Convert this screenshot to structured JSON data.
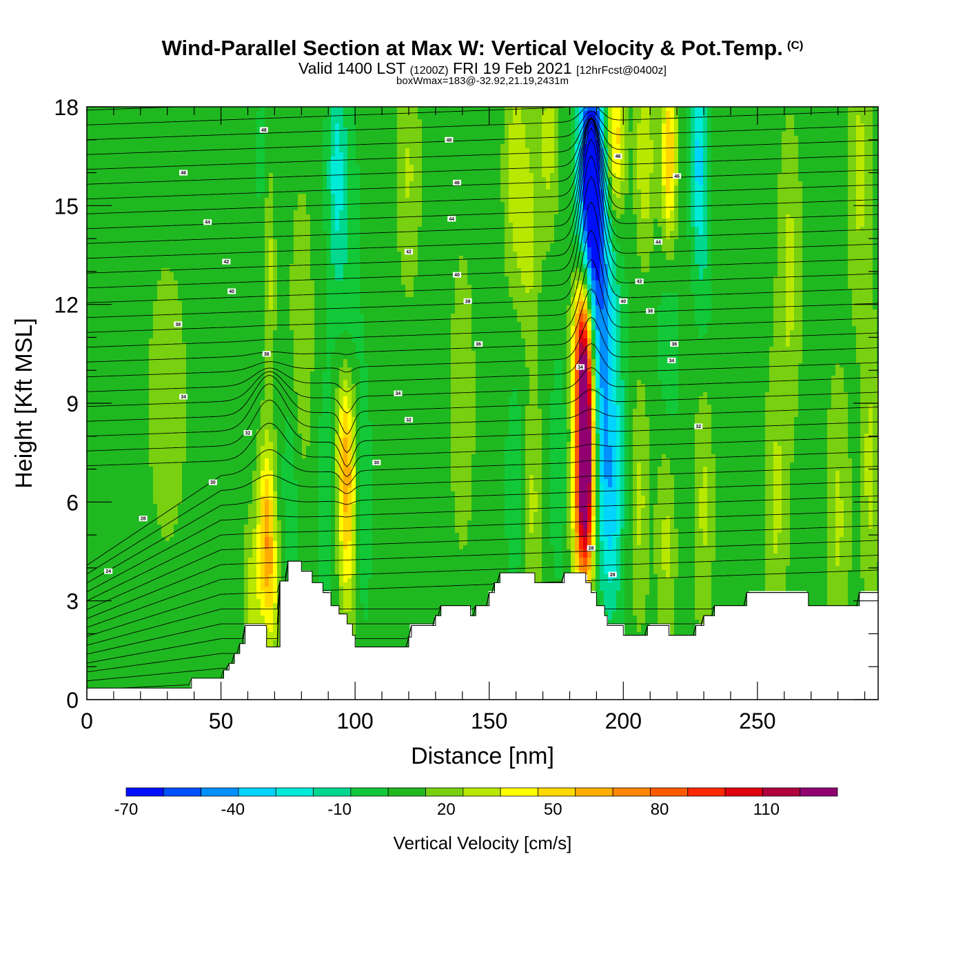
{
  "header": {
    "title": "Wind-Parallel Section at Max W: Vertical Velocity & Pot.Temp.",
    "copyright": "(C)",
    "valid_prefix": "Valid 1400 LST",
    "valid_z": "(1200Z)",
    "valid_date": "FRI 19 Feb 2021",
    "forecast": "[12hrFcst@0400z]",
    "box_info": "boxWmax=183@-32.92,21.19,2431m"
  },
  "chart_data": {
    "type": "heatmap",
    "xlabel": "Distance [nm]",
    "ylabel": "Height [Kft MSL]",
    "xlim": [
      0,
      295
    ],
    "ylim": [
      0,
      18
    ],
    "x_ticks": [
      "0",
      "50",
      "100",
      "150",
      "200",
      "250"
    ],
    "y_ticks": [
      "0",
      "3",
      "6",
      "9",
      "12",
      "15",
      "18"
    ],
    "colorbar": {
      "label": "Vertical Velocity [cm/s]",
      "bins": [
        -70,
        -60,
        -50,
        -40,
        -30,
        -20,
        -10,
        0,
        10,
        20,
        30,
        40,
        50,
        60,
        70,
        80,
        90,
        100,
        110,
        120,
        130
      ],
      "tick_labels": [
        "-70",
        "-40",
        "-10",
        "20",
        "50",
        "80",
        "110"
      ],
      "colors": [
        "#0010ff",
        "#0050ff",
        "#0090ff",
        "#00d4ff",
        "#00ead8",
        "#00d890",
        "#12c838",
        "#20b820",
        "#78d010",
        "#b8e800",
        "#ffff00",
        "#ffd800",
        "#ffae00",
        "#ff8600",
        "#ff5a00",
        "#ff2800",
        "#e00010",
        "#b00040",
        "#900070"
      ]
    },
    "terrain_kft": [
      [
        0,
        0.35
      ],
      [
        38,
        0.35
      ],
      [
        39,
        0.65
      ],
      [
        50,
        0.65
      ],
      [
        51,
        0.9
      ],
      [
        53,
        1.1
      ],
      [
        55,
        1.4
      ],
      [
        57,
        1.7
      ],
      [
        59,
        2.25
      ],
      [
        66,
        2.25
      ],
      [
        67,
        1.6
      ],
      [
        71,
        1.6
      ],
      [
        72,
        3.6
      ],
      [
        75,
        4.2
      ],
      [
        79,
        4.2
      ],
      [
        80,
        3.9
      ],
      [
        84,
        3.55
      ],
      [
        88,
        3.25
      ],
      [
        91,
        2.85
      ],
      [
        94,
        2.6
      ],
      [
        97,
        2.3
      ],
      [
        99,
        1.95
      ],
      [
        100,
        1.6
      ],
      [
        119,
        1.6
      ],
      [
        120,
        1.9
      ],
      [
        121,
        2.25
      ],
      [
        127,
        2.25
      ],
      [
        130,
        2.55
      ],
      [
        132,
        2.85
      ],
      [
        142,
        2.85
      ],
      [
        143,
        2.55
      ],
      [
        145,
        2.85
      ],
      [
        149,
        2.85
      ],
      [
        150,
        3.25
      ],
      [
        152,
        3.55
      ],
      [
        154,
        3.85
      ],
      [
        166,
        3.85
      ],
      [
        167,
        3.55
      ],
      [
        176,
        3.55
      ],
      [
        178,
        3.85
      ],
      [
        185,
        3.85
      ],
      [
        186,
        3.55
      ],
      [
        188,
        3.25
      ],
      [
        190,
        2.85
      ],
      [
        193,
        2.55
      ],
      [
        194,
        2.25
      ],
      [
        199,
        2.25
      ],
      [
        200,
        1.95
      ],
      [
        208,
        1.95
      ],
      [
        209,
        2.25
      ],
      [
        216,
        2.25
      ],
      [
        217,
        1.95
      ],
      [
        226,
        1.95
      ],
      [
        227,
        2.25
      ],
      [
        230,
        2.55
      ],
      [
        234,
        2.85
      ],
      [
        245,
        2.85
      ],
      [
        246,
        3.25
      ],
      [
        257,
        3.25
      ],
      [
        268,
        3.25
      ],
      [
        269,
        2.85
      ],
      [
        287,
        2.85
      ],
      [
        288,
        3.25
      ],
      [
        295,
        3.25
      ]
    ],
    "theta_contour_labels": [
      {
        "x": 66,
        "y": 17.3,
        "text": "48"
      },
      {
        "x": 135,
        "y": 17.0,
        "text": "48"
      },
      {
        "x": 36,
        "y": 16.0,
        "text": "46"
      },
      {
        "x": 138,
        "y": 15.7,
        "text": "46"
      },
      {
        "x": 198,
        "y": 16.5,
        "text": "46"
      },
      {
        "x": 220,
        "y": 15.9,
        "text": "46"
      },
      {
        "x": 45,
        "y": 14.5,
        "text": "44"
      },
      {
        "x": 136,
        "y": 14.6,
        "text": "44"
      },
      {
        "x": 213,
        "y": 13.9,
        "text": "44"
      },
      {
        "x": 52,
        "y": 13.3,
        "text": "42"
      },
      {
        "x": 120,
        "y": 13.6,
        "text": "42"
      },
      {
        "x": 206,
        "y": 12.7,
        "text": "42"
      },
      {
        "x": 54,
        "y": 12.4,
        "text": "40"
      },
      {
        "x": 138,
        "y": 12.9,
        "text": "40"
      },
      {
        "x": 200,
        "y": 12.1,
        "text": "40"
      },
      {
        "x": 34,
        "y": 11.4,
        "text": "38"
      },
      {
        "x": 142,
        "y": 12.1,
        "text": "38"
      },
      {
        "x": 210,
        "y": 11.8,
        "text": "38"
      },
      {
        "x": 67,
        "y": 10.5,
        "text": "36"
      },
      {
        "x": 146,
        "y": 10.8,
        "text": "36"
      },
      {
        "x": 219,
        "y": 10.8,
        "text": "36"
      },
      {
        "x": 36,
        "y": 9.2,
        "text": "34"
      },
      {
        "x": 116,
        "y": 9.3,
        "text": "34"
      },
      {
        "x": 218,
        "y": 10.3,
        "text": "34"
      },
      {
        "x": 184,
        "y": 10.1,
        "text": "34"
      },
      {
        "x": 120,
        "y": 8.5,
        "text": "32"
      },
      {
        "x": 60,
        "y": 8.1,
        "text": "32"
      },
      {
        "x": 228,
        "y": 8.3,
        "text": "32"
      },
      {
        "x": 108,
        "y": 7.2,
        "text": "30"
      },
      {
        "x": 47,
        "y": 6.6,
        "text": "30"
      },
      {
        "x": 21,
        "y": 5.5,
        "text": "28"
      },
      {
        "x": 188,
        "y": 4.6,
        "text": "28"
      },
      {
        "x": 196,
        "y": 3.8,
        "text": "28"
      },
      {
        "x": 8,
        "y": 3.9,
        "text": "24"
      }
    ],
    "w_features": [
      {
        "x": 186,
        "y": 8.0,
        "sx": 2.4,
        "sy": 2.7,
        "w": 125
      },
      {
        "x": 185,
        "y": 6.0,
        "sx": 3.0,
        "sy": 2.2,
        "w": 50
      },
      {
        "x": 184.5,
        "y": 11.0,
        "sx": 2.5,
        "sy": 1.6,
        "w": 60
      },
      {
        "x": 193,
        "y": 10.0,
        "sx": 4.5,
        "sy": 4.0,
        "w": -38
      },
      {
        "x": 188,
        "y": 15.5,
        "sx": 3.5,
        "sy": 3.2,
        "w": -85
      },
      {
        "x": 191,
        "y": 6.5,
        "sx": 6.0,
        "sy": 2.5,
        "w": -14
      },
      {
        "x": 97,
        "y": 6.0,
        "sx": 2.6,
        "sy": 2.4,
        "w": 45
      },
      {
        "x": 96,
        "y": 8.0,
        "sx": 2.5,
        "sy": 1.4,
        "w": 20
      },
      {
        "x": 67,
        "y": 5.2,
        "sx": 2.2,
        "sy": 1.8,
        "w": 48
      },
      {
        "x": 62,
        "y": 3.2,
        "sx": 2.5,
        "sy": 1.6,
        "w": 20
      },
      {
        "x": 69,
        "y": 3.0,
        "sx": 2.2,
        "sy": 1.5,
        "w": 20
      },
      {
        "x": 90,
        "y": 6.0,
        "sx": 3.0,
        "sy": 3.0,
        "w": -13
      },
      {
        "x": 76,
        "y": 6.5,
        "sx": 2.5,
        "sy": 2.5,
        "w": -12
      },
      {
        "x": 103,
        "y": 6.0,
        "sx": 2.5,
        "sy": 3.0,
        "w": -12
      },
      {
        "x": 93,
        "y": 16.0,
        "sx": 2.5,
        "sy": 2.5,
        "w": -28
      },
      {
        "x": 67,
        "y": 16.5,
        "sx": 2.5,
        "sy": 2.0,
        "w": -14
      },
      {
        "x": 68,
        "y": 14.0,
        "sx": 1.5,
        "sy": 3.0,
        "w": 22
      },
      {
        "x": 98,
        "y": 13.0,
        "sx": 3.0,
        "sy": 4.0,
        "w": -11
      },
      {
        "x": 197,
        "y": 17.0,
        "sx": 2.5,
        "sy": 1.8,
        "w": 45
      },
      {
        "x": 208,
        "y": 16.5,
        "sx": 2.5,
        "sy": 2.0,
        "w": 25
      },
      {
        "x": 217,
        "y": 16.5,
        "sx": 2.0,
        "sy": 2.0,
        "w": 45
      },
      {
        "x": 228,
        "y": 16.5,
        "sx": 2.2,
        "sy": 2.0,
        "w": -35
      },
      {
        "x": 230,
        "y": 13.0,
        "sx": 2.5,
        "sy": 2.5,
        "w": -12
      },
      {
        "x": 217,
        "y": 10.5,
        "sx": 3.0,
        "sy": 2.5,
        "w": -14
      },
      {
        "x": 262,
        "y": 13.0,
        "sx": 3.0,
        "sy": 3.0,
        "w": 18
      },
      {
        "x": 288,
        "y": 16.0,
        "sx": 3.0,
        "sy": 3.0,
        "w": 18
      },
      {
        "x": 160,
        "y": 16.0,
        "sx": 3.0,
        "sy": 2.5,
        "w": 22
      },
      {
        "x": 165,
        "y": 14.0,
        "sx": 2.5,
        "sy": 2.0,
        "w": 18
      },
      {
        "x": 172,
        "y": 17.0,
        "sx": 2.5,
        "sy": 2.0,
        "w": 20
      },
      {
        "x": 160,
        "y": 6.5,
        "sx": 3.0,
        "sy": 2.5,
        "w": -12
      },
      {
        "x": 166,
        "y": 6.0,
        "sx": 2.5,
        "sy": 2.5,
        "w": 18
      },
      {
        "x": 176,
        "y": 7.0,
        "sx": 2.5,
        "sy": 2.5,
        "w": -13
      },
      {
        "x": 196,
        "y": 5.0,
        "sx": 2.5,
        "sy": 2.0,
        "w": -15
      },
      {
        "x": 206,
        "y": 6.0,
        "sx": 2.5,
        "sy": 2.5,
        "w": 18
      },
      {
        "x": 216,
        "y": 5.0,
        "sx": 2.5,
        "sy": 2.5,
        "w": 18
      },
      {
        "x": 230,
        "y": 6.0,
        "sx": 2.5,
        "sy": 3.0,
        "w": 17
      },
      {
        "x": 257,
        "y": 6.0,
        "sx": 3.0,
        "sy": 3.0,
        "w": 17
      },
      {
        "x": 280,
        "y": 5.5,
        "sx": 3.0,
        "sy": 3.0,
        "w": 17
      },
      {
        "x": 292,
        "y": 7.0,
        "sx": 2.5,
        "sy": 3.0,
        "w": 18
      },
      {
        "x": 120,
        "y": 16.0,
        "sx": 3.0,
        "sy": 2.5,
        "w": 16
      },
      {
        "x": 80,
        "y": 11.0,
        "sx": 3.0,
        "sy": 3.0,
        "w": 15
      },
      {
        "x": 140,
        "y": 9.0,
        "sx": 3.0,
        "sy": 3.0,
        "w": 15
      },
      {
        "x": 30,
        "y": 9.0,
        "sx": 5.0,
        "sy": 3.0,
        "w": 13
      }
    ],
    "w_background": 5
  }
}
